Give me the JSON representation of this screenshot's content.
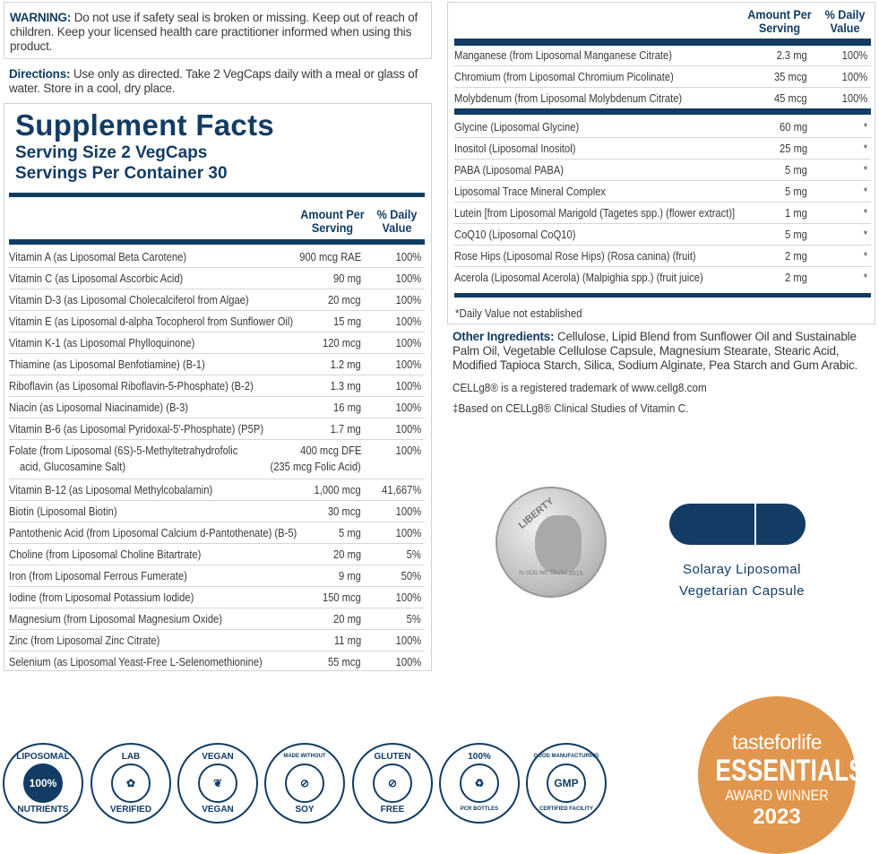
{
  "warning": {
    "label": "WARNING:",
    "text": " Do not use if safety seal is broken or missing. Keep out of reach of children. Keep your licensed health care practitioner informed when using this product."
  },
  "directions": {
    "label": "Directions:",
    "text": " Use only as directed. Take 2 VegCaps daily with a meal or glass of water. Store in a cool, dry place."
  },
  "facts": {
    "title": "Supplement Facts",
    "serving_size": "Serving Size 2 VegCaps",
    "servings_per_container": "Servings Per Container 30",
    "col_amount": "Amount Per Serving",
    "col_dv": "% Daily Value"
  },
  "left_rows": [
    {
      "name": "Vitamin A (as Liposomal Beta Carotene)",
      "amount": "900 mcg RAE",
      "dv": "100%"
    },
    {
      "name": "Vitamin C (as Liposomal Ascorbic Acid)",
      "amount": "90 mg",
      "dv": "100%"
    },
    {
      "name": "Vitamin D-3 (as Liposomal Cholecalciferol from Algae)",
      "amount": "20 mcg",
      "dv": "100%"
    },
    {
      "name": "Vitamin E (as Liposomal d-alpha Tocopherol from Sunflower Oil)",
      "amount": "15 mg",
      "dv": "100%"
    },
    {
      "name": "Vitamin K-1 (as Liposomal Phylloquinone)",
      "amount": "120 mcg",
      "dv": "100%"
    },
    {
      "name": "Thiamine (as Liposomal Benfotiamine) (B-1)",
      "amount": "1.2 mg",
      "dv": "100%"
    },
    {
      "name": "Riboflavin (as Liposomal Riboflavin-5-Phosphate) (B-2)",
      "amount": "1.3 mg",
      "dv": "100%"
    },
    {
      "name": "Niacin (as Liposomal Niacinamide) (B-3)",
      "amount": "16 mg",
      "dv": "100%"
    },
    {
      "name": "Vitamin B-6 (as Liposomal Pyridoxal-5'-Phosphate) (P5P)",
      "amount": "1.7 mg",
      "dv": "100%"
    },
    {
      "name": "Folate (from Liposomal (6S)-5-Methyltetrahydrofolic",
      "name2": "acid, Glucosamine Salt)",
      "amount": "400 mcg DFE",
      "amount2": "(235 mcg Folic Acid)",
      "dv": "100%"
    },
    {
      "name": "Vitamin B-12 (as Liposomal Methylcobalamin)",
      "amount": "1,000 mcg",
      "dv": "41,667%"
    },
    {
      "name": "Biotin (Liposomal Biotin)",
      "amount": "30 mcg",
      "dv": "100%"
    },
    {
      "name": "Pantothenic Acid (from Liposomal Calcium d-Pantothenate) (B-5)",
      "amount": "5 mg",
      "dv": "100%"
    },
    {
      "name": "Choline (from Liposomal Choline Bitartrate)",
      "amount": "20 mg",
      "dv": "5%"
    },
    {
      "name": "Iron (from Liposomal Ferrous Fumerate)",
      "amount": "9 mg",
      "dv": "50%"
    },
    {
      "name": "Iodine (from Liposomal Potassium Iodide)",
      "amount": "150 mcg",
      "dv": "100%"
    },
    {
      "name": "Magnesium (from Liposomal Magnesium Oxide)",
      "amount": "20 mg",
      "dv": "5%"
    },
    {
      "name": "Zinc (from Liposomal Zinc Citrate)",
      "amount": "11 mg",
      "dv": "100%"
    },
    {
      "name": "Selenium (as Liposomal Yeast-Free L-Selenomethionine)",
      "amount": "55 mcg",
      "dv": "100%"
    }
  ],
  "right_rows_a": [
    {
      "name": "Manganese (from Liposomal Manganese Citrate)",
      "amount": "2.3 mg",
      "dv": "100%"
    },
    {
      "name": "Chromium (from Liposomal Chromium Picolinate)",
      "amount": "35 mcg",
      "dv": "100%"
    },
    {
      "name": "Molybdenum (from Liposomal Molybdenum Citrate)",
      "amount": "45 mcg",
      "dv": "100%"
    }
  ],
  "right_rows_b": [
    {
      "name": "Glycine (Liposomal Glycine)",
      "amount": "60 mg",
      "dv": "*"
    },
    {
      "name": "Inositol (Liposomal Inositol)",
      "amount": "25 mg",
      "dv": "*"
    },
    {
      "name": "PABA (Liposomal PABA)",
      "amount": "5 mg",
      "dv": "*"
    },
    {
      "name": "Liposomal Trace Mineral Complex",
      "amount": "5 mg",
      "dv": "*"
    },
    {
      "name": "Lutein [from Liposomal Marigold (Tagetes spp.) (flower extract)]",
      "amount": "1 mg",
      "dv": "*"
    },
    {
      "name": "CoQ10 (Liposomal CoQ10)",
      "amount": "5 mg",
      "dv": "*"
    },
    {
      "name": "Rose Hips (Liposomal Rose Hips) (Rosa canina) (fruit)",
      "amount": "2 mg",
      "dv": "*"
    },
    {
      "name": "Acerola (Liposomal Acerola) (Malpighia spp.) (fruit juice)",
      "amount": "2 mg",
      "dv": "*"
    }
  ],
  "footnote": "*Daily Value not established",
  "other_ingredients": {
    "label": "Other Ingredients:",
    "text": " Cellulose, Lipid Blend from Sunflower Oil and Sustainable Palm Oil, Vegetable Cellulose Capsule, Magnesium Stearate, Stearic Acid, Modified Tapioca Starch, Silica, Sodium Alginate, Pea Starch and Gum Arabic."
  },
  "trademark": "CELLg8® is a registered trademark of www.cellg8.com",
  "clinical": "‡Based on CELLg8® Clinical Studies of Vitamin C.",
  "coin": {
    "top": "LIBERTY",
    "bottom": "IN GOD WE TRUST",
    "year": "2015"
  },
  "capsule_caption": {
    "line1": "Solaray Liposomal",
    "line2": "Vegetarian Capsule"
  },
  "badges": [
    {
      "top": "LIPOSOMAL",
      "center": "100%",
      "bottom": "NUTRIENTS"
    },
    {
      "top": "LAB",
      "center": "✿",
      "bottom": "VERIFIED"
    },
    {
      "top": "VEGAN",
      "center": "❦",
      "bottom": "VEGAN"
    },
    {
      "top": "MADE WITHOUT",
      "center": "⊘",
      "bottom": "SOY"
    },
    {
      "top": "GLUTEN",
      "center": "⊘",
      "bottom": "FREE"
    },
    {
      "top": "100%",
      "center": "♻",
      "bottom": "PCR BOTTLES"
    },
    {
      "top": "GOOD MANUFACTURING",
      "center": "GMP",
      "bottom": "CERTIFIED FACILITY"
    }
  ],
  "award": {
    "brand": "tasteforlife",
    "title": "ESSENTIALS",
    "subtitle": "AWARD WINNER",
    "year": "2023",
    "color": "#e0964c"
  },
  "colors": {
    "navy": "#123c64"
  }
}
